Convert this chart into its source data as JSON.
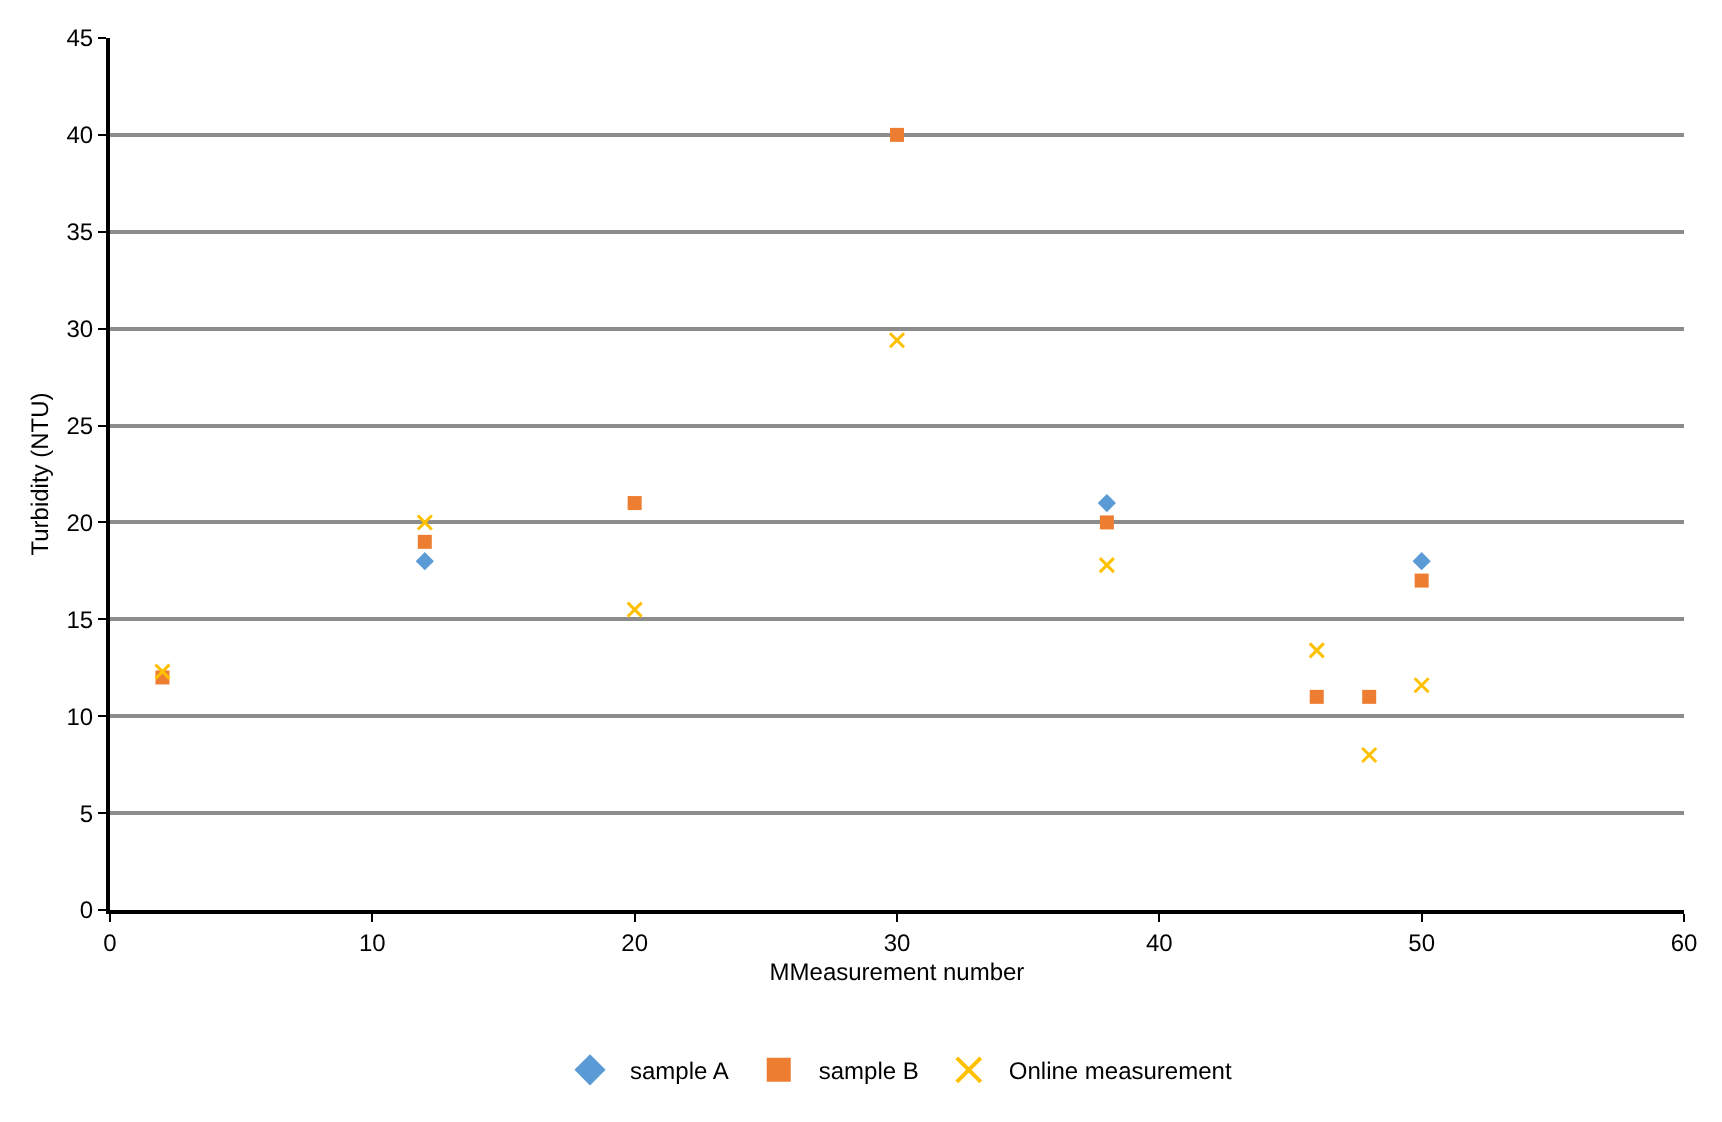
{
  "chart_data": {
    "type": "scatter",
    "xlabel": "MMeasurement number",
    "ylabel": "Turbidity (NTU)",
    "xlim": [
      0,
      60
    ],
    "xticks": [
      0,
      10,
      20,
      30,
      40,
      50,
      60
    ],
    "ylim": [
      0,
      45
    ],
    "yticks": [
      0,
      5,
      10,
      15,
      20,
      25,
      30,
      35,
      40,
      45
    ],
    "grid": "y",
    "legend": "bottom",
    "series": [
      {
        "name": "sample A",
        "color": "#5b9bd5",
        "marker": "diamond",
        "x": [
          12,
          38,
          50
        ],
        "values": [
          18,
          21,
          18
        ]
      },
      {
        "name": "sample B",
        "color": "#ed7d31",
        "marker": "square",
        "x": [
          2,
          12,
          20,
          30,
          38,
          46,
          48,
          50
        ],
        "values": [
          12,
          19,
          21,
          40,
          20,
          11,
          11,
          17
        ]
      },
      {
        "name": "Online measurement",
        "color": "#ffc000",
        "marker": "cross",
        "x": [
          2,
          12,
          20,
          30,
          38,
          46,
          48,
          50
        ],
        "values": [
          12.3,
          20,
          15.5,
          29.4,
          17.8,
          13.4,
          8,
          11.6
        ]
      }
    ]
  }
}
